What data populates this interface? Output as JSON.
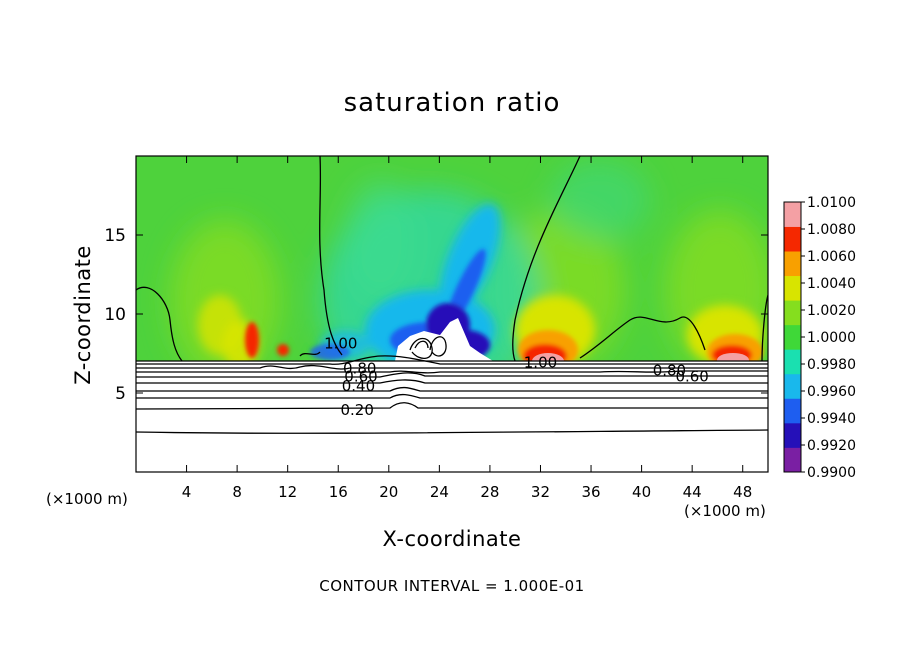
{
  "chart_data": {
    "type": "heatmap",
    "title": "saturation ratio",
    "xlabel": "X-coordinate",
    "ylabel": "Z-coordinate",
    "x_unit_label": "(×1000 m)",
    "xlim": [
      0,
      50
    ],
    "ylim": [
      0,
      20
    ],
    "x_ticks": [
      4,
      8,
      12,
      16,
      20,
      24,
      28,
      32,
      36,
      40,
      44,
      48
    ],
    "y_ticks": [
      5,
      10,
      15
    ],
    "colorbar": {
      "min": 0.99,
      "max": 1.01,
      "tick_labels": [
        "1.0100",
        "1.0080",
        "1.0060",
        "1.0040",
        "1.0020",
        "1.0000",
        "0.9980",
        "0.9960",
        "0.9940",
        "0.9920",
        "0.9900"
      ],
      "colors": [
        "#7a1fa3",
        "#2510b8",
        "#1e5ef0",
        "#19b8ec",
        "#1ae0b0",
        "#3fd838",
        "#85de1e",
        "#d8e400",
        "#f8a000",
        "#f52800",
        "#f4a0a4"
      ]
    },
    "contour_labels": [
      {
        "text": "1.00",
        "x": 32.0,
        "z": 7.0
      },
      {
        "text": "1.00",
        "x": 16.2,
        "z": 8.2
      },
      {
        "text": "0.80",
        "x": 17.7,
        "z": 6.6
      },
      {
        "text": "0.60",
        "x": 17.8,
        "z": 6.1
      },
      {
        "text": "0.40",
        "x": 17.6,
        "z": 5.5
      },
      {
        "text": "0.20",
        "x": 17.5,
        "z": 4.0
      },
      {
        "text": "0.80",
        "x": 42.2,
        "z": 6.5
      },
      {
        "text": "0.60",
        "x": 44.0,
        "z": 6.1
      }
    ],
    "contour_interval_note": "CONTOUR INTERVAL = 1.000E-01",
    "grid": false,
    "legend_position": "right"
  }
}
